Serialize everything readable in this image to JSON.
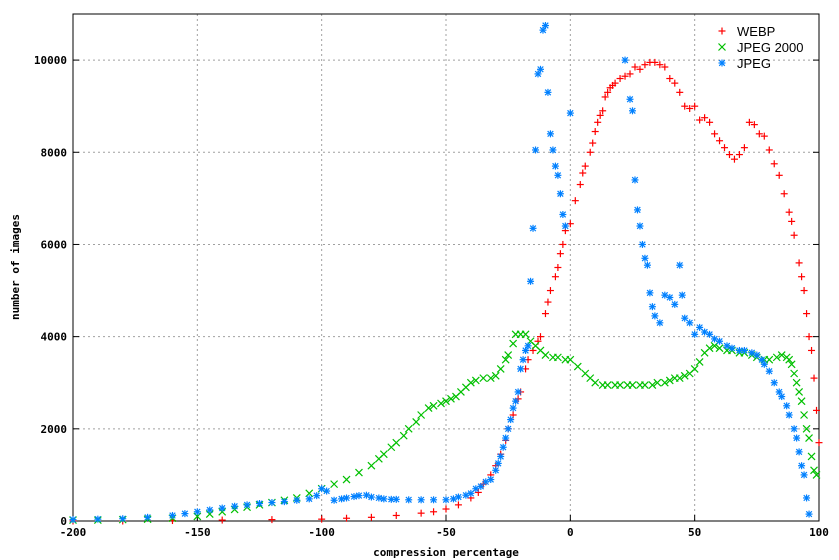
{
  "chart_data": {
    "type": "scatter",
    "title": "",
    "xlabel": "compression percentage",
    "ylabel": "number of images",
    "xlim": [
      -200,
      100
    ],
    "ylim": [
      0,
      11000
    ],
    "xticks": [
      -200,
      -150,
      -100,
      -50,
      0,
      50,
      100
    ],
    "yticks": [
      0,
      2000,
      4000,
      6000,
      8000,
      10000
    ],
    "grid": true,
    "legend_position": "top-right",
    "series": [
      {
        "name": "WEBP",
        "marker": "plus",
        "color": "#ff0000",
        "x": [
          -200,
          -180,
          -160,
          -140,
          -120,
          -100,
          -90,
          -80,
          -70,
          -60,
          -55,
          -50,
          -45,
          -40,
          -37,
          -35,
          -32,
          -30,
          -28,
          -26,
          -25,
          -23,
          -21,
          -20,
          -18,
          -17,
          -15,
          -13,
          -12,
          -10,
          -9,
          -8,
          -6,
          -5,
          -4,
          -3,
          -2,
          0,
          2,
          4,
          5,
          6,
          8,
          9,
          10,
          11,
          12,
          13,
          14,
          15,
          16,
          17,
          18,
          20,
          22,
          24,
          26,
          28,
          30,
          32,
          34,
          36,
          38,
          40,
          42,
          44,
          46,
          48,
          50,
          52,
          54,
          56,
          58,
          60,
          62,
          64,
          66,
          68,
          70,
          72,
          74,
          76,
          78,
          80,
          82,
          84,
          86,
          88,
          89,
          90,
          92,
          93,
          94,
          95,
          96,
          97,
          98,
          99,
          100
        ],
        "y": [
          0,
          0,
          10,
          20,
          30,
          40,
          60,
          80,
          120,
          170,
          200,
          260,
          350,
          500,
          620,
          800,
          1000,
          1200,
          1450,
          1750,
          2000,
          2300,
          2650,
          2800,
          3300,
          3500,
          3700,
          3900,
          4000,
          4500,
          4750,
          5000,
          5300,
          5500,
          5800,
          6000,
          6300,
          6450,
          6950,
          7300,
          7550,
          7700,
          8000,
          8200,
          8450,
          8650,
          8800,
          8900,
          9200,
          9300,
          9400,
          9450,
          9500,
          9600,
          9650,
          9700,
          9850,
          9800,
          9900,
          9950,
          9950,
          9900,
          9850,
          9600,
          9500,
          9300,
          9000,
          8950,
          9000,
          8700,
          8750,
          8650,
          8400,
          8250,
          8100,
          7950,
          7850,
          7950,
          8100,
          8650,
          8600,
          8400,
          8350,
          8050,
          7750,
          7500,
          7100,
          6700,
          6500,
          6200,
          5600,
          5300,
          5000,
          4500,
          4000,
          3700,
          3100,
          2400,
          1700
        ]
      },
      {
        "name": "JPEG 2000",
        "marker": "cross",
        "color": "#00c000",
        "x": [
          -200,
          -190,
          -180,
          -170,
          -160,
          -150,
          -145,
          -140,
          -135,
          -130,
          -125,
          -120,
          -115,
          -110,
          -105,
          -100,
          -95,
          -90,
          -85,
          -80,
          -77,
          -75,
          -72,
          -70,
          -67,
          -65,
          -62,
          -60,
          -57,
          -55,
          -52,
          -50,
          -48,
          -46,
          -44,
          -42,
          -40,
          -38,
          -35,
          -32,
          -30,
          -28,
          -26,
          -25,
          -23,
          -22,
          -20,
          -18,
          -16,
          -14,
          -12,
          -10,
          -7,
          -5,
          -2,
          0,
          3,
          6,
          8,
          10,
          13,
          15,
          18,
          20,
          23,
          25,
          28,
          30,
          33,
          35,
          38,
          40,
          42,
          44,
          46,
          48,
          50,
          52,
          54,
          56,
          58,
          60,
          63,
          65,
          68,
          70,
          73,
          75,
          78,
          80,
          83,
          85,
          87,
          88,
          89,
          90,
          91,
          92,
          93,
          94,
          95,
          96,
          97,
          98,
          99
        ],
        "y": [
          20,
          20,
          30,
          40,
          60,
          100,
          150,
          200,
          250,
          300,
          350,
          400,
          450,
          500,
          600,
          700,
          800,
          900,
          1050,
          1200,
          1350,
          1450,
          1600,
          1700,
          1850,
          2000,
          2150,
          2300,
          2450,
          2500,
          2550,
          2600,
          2650,
          2700,
          2800,
          2900,
          3000,
          3050,
          3100,
          3100,
          3150,
          3300,
          3500,
          3600,
          3850,
          4050,
          4050,
          4050,
          3900,
          3800,
          3700,
          3600,
          3550,
          3550,
          3500,
          3500,
          3350,
          3200,
          3100,
          3000,
          2950,
          2950,
          2950,
          2950,
          2950,
          2950,
          2950,
          2950,
          2950,
          3000,
          3000,
          3050,
          3100,
          3100,
          3150,
          3200,
          3300,
          3450,
          3650,
          3750,
          3800,
          3750,
          3700,
          3700,
          3650,
          3650,
          3600,
          3550,
          3500,
          3500,
          3550,
          3600,
          3550,
          3500,
          3400,
          3200,
          3000,
          2800,
          2600,
          2300,
          2000,
          1800,
          1400,
          1100,
          1000
        ]
      },
      {
        "name": "JPEG",
        "marker": "star",
        "color": "#0080ff",
        "x": [
          -200,
          -190,
          -180,
          -170,
          -160,
          -155,
          -150,
          -145,
          -140,
          -135,
          -130,
          -125,
          -120,
          -115,
          -110,
          -105,
          -102,
          -100,
          -98,
          -95,
          -92,
          -90,
          -87,
          -85,
          -82,
          -80,
          -77,
          -75,
          -72,
          -70,
          -65,
          -60,
          -55,
          -50,
          -47,
          -45,
          -42,
          -40,
          -38,
          -36,
          -34,
          -32,
          -30,
          -29,
          -28,
          -27,
          -26,
          -25,
          -24,
          -23,
          -22,
          -21,
          -20,
          -19,
          -18,
          -17,
          -16,
          -15,
          -14,
          -13,
          -12,
          -11,
          -10,
          -9,
          -8,
          -7,
          -6,
          -5,
          -4,
          -3,
          -2,
          0,
          22,
          24,
          25,
          26,
          27,
          28,
          29,
          30,
          31,
          32,
          33,
          34,
          36,
          38,
          40,
          42,
          44,
          45,
          46,
          48,
          50,
          52,
          54,
          56,
          58,
          60,
          63,
          65,
          68,
          70,
          73,
          75,
          77,
          78,
          80,
          82,
          84,
          85,
          87,
          88,
          90,
          91,
          92,
          93,
          94,
          95,
          96
        ],
        "y": [
          30,
          40,
          50,
          80,
          120,
          160,
          200,
          240,
          280,
          320,
          350,
          380,
          400,
          420,
          450,
          480,
          550,
          700,
          650,
          450,
          480,
          500,
          530,
          550,
          560,
          520,
          500,
          480,
          470,
          470,
          460,
          460,
          460,
          460,
          480,
          520,
          560,
          600,
          700,
          750,
          850,
          900,
          1100,
          1250,
          1400,
          1600,
          1800,
          2000,
          2200,
          2450,
          2600,
          2800,
          3300,
          3500,
          3700,
          3800,
          5200,
          6350,
          8050,
          9700,
          9800,
          10650,
          10750,
          9300,
          8400,
          8050,
          7700,
          7500,
          7100,
          6650,
          6400,
          8850,
          10000,
          9150,
          8900,
          7400,
          6750,
          6400,
          6000,
          5700,
          5550,
          4950,
          4650,
          4450,
          4300,
          4900,
          4850,
          4700,
          5550,
          4900,
          4400,
          4300,
          4050,
          4200,
          4100,
          4050,
          3950,
          3900,
          3800,
          3750,
          3700,
          3700,
          3650,
          3600,
          3500,
          3400,
          3250,
          3000,
          2800,
          2700,
          2500,
          2300,
          2000,
          1800,
          1500,
          1200,
          1000,
          500,
          150
        ]
      }
    ]
  }
}
